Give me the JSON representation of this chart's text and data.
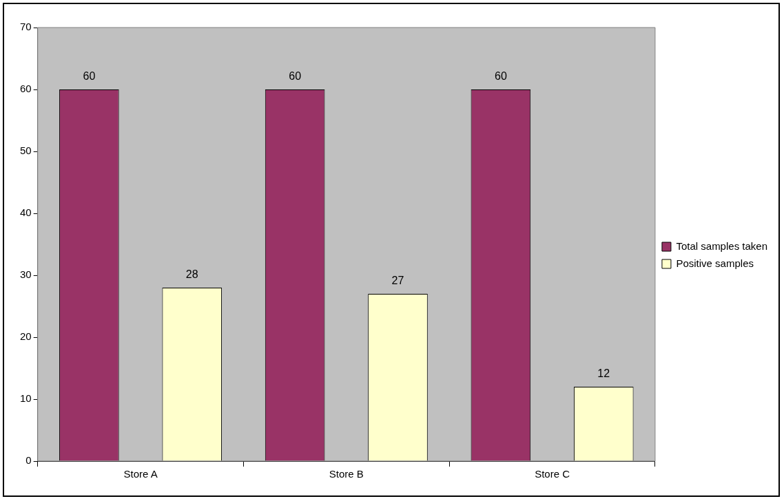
{
  "chart_data": {
    "type": "bar",
    "categories": [
      "Store A",
      "Store B",
      "Store C"
    ],
    "series": [
      {
        "name": "Total samples taken",
        "color": "#993366",
        "values": [
          60,
          60,
          60
        ]
      },
      {
        "name": "Positive samples",
        "color": "#ffffcc",
        "values": [
          28,
          27,
          12
        ]
      }
    ],
    "ylim": [
      0,
      70
    ],
    "yticks": [
      0,
      10,
      20,
      30,
      40,
      50,
      60,
      70
    ],
    "grid": false,
    "legend": "right",
    "data_labels": true
  }
}
